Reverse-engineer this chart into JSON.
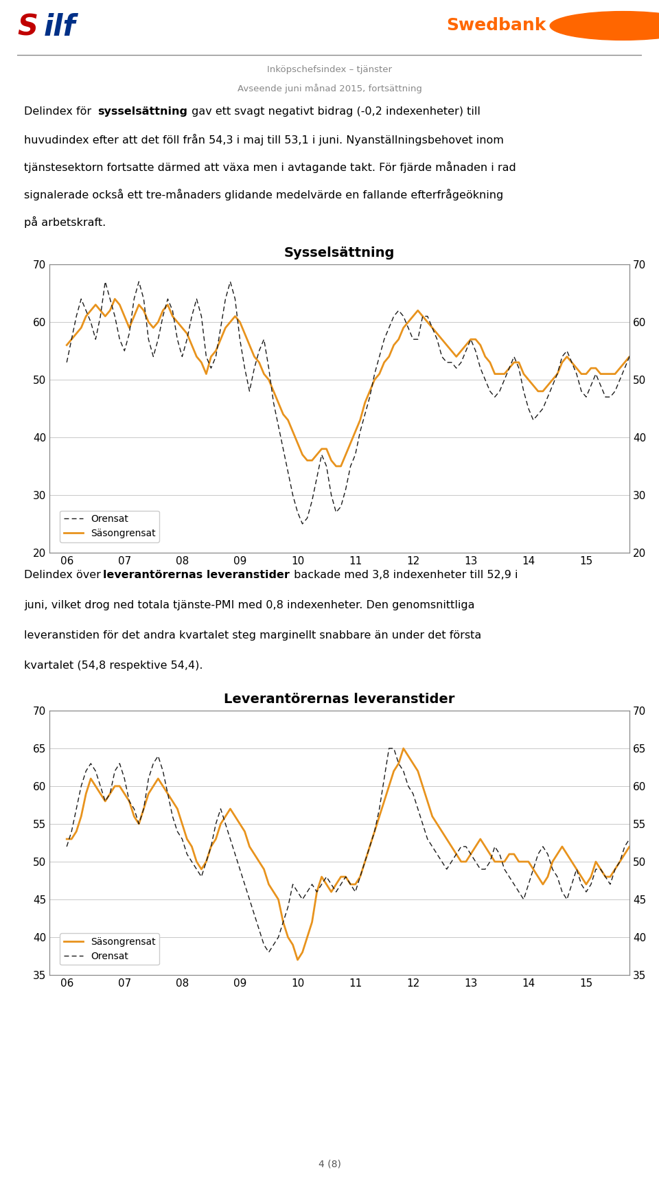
{
  "title1": "Sysselsättning",
  "title2": "Leverantörernas leveranstider",
  "header_line1": "Inköpschefsindex – tjänster",
  "header_line2": "Avseende juni månad 2015, fortsättning",
  "page_label": "4 (8)",
  "orange_color": "#E8931D",
  "dashed_color": "#1a1a1a",
  "grid_color": "#C8C8C8",
  "background_color": "#FFFFFF",
  "chart1_ylim": [
    20,
    70
  ],
  "chart1_yticks": [
    20,
    30,
    40,
    50,
    60,
    70
  ],
  "chart2_ylim": [
    35,
    70
  ],
  "chart2_yticks": [
    35,
    40,
    45,
    50,
    55,
    60,
    65,
    70
  ],
  "xtick_labels": [
    "06",
    "07",
    "08",
    "09",
    "10",
    "11",
    "12",
    "13",
    "14",
    "15"
  ],
  "chart1_seasonal": [
    56,
    57,
    58,
    59,
    61,
    62,
    63,
    62,
    61,
    62,
    64,
    63,
    61,
    59,
    61,
    63,
    62,
    60,
    59,
    60,
    62,
    63,
    61,
    60,
    59,
    58,
    56,
    54,
    53,
    51,
    54,
    55,
    57,
    59,
    60,
    61,
    60,
    58,
    56,
    54,
    53,
    51,
    50,
    48,
    46,
    44,
    43,
    41,
    39,
    37,
    36,
    36,
    37,
    38,
    38,
    36,
    35,
    35,
    37,
    39,
    41,
    43,
    46,
    48,
    50,
    51,
    53,
    54,
    56,
    57,
    59,
    60,
    61,
    62,
    61,
    60,
    59,
    58,
    57,
    56,
    55,
    54,
    55,
    56,
    57,
    57,
    56,
    54,
    53,
    51,
    51,
    51,
    52,
    53,
    53,
    51,
    50,
    49,
    48,
    48,
    49,
    50,
    51,
    53,
    54,
    53,
    52,
    51,
    51,
    52,
    52,
    51,
    51,
    51,
    51,
    52,
    53,
    54,
    54,
    53,
    52,
    51,
    51,
    52,
    52,
    51,
    51,
    50,
    51,
    52,
    53,
    54,
    55,
    56,
    56,
    55,
    54,
    53,
    52,
    51,
    53,
    54,
    55,
    56,
    57,
    58,
    59,
    59,
    58,
    57,
    56,
    55,
    54,
    53,
    52,
    51,
    52,
    53,
    54,
    55,
    55,
    54,
    53,
    52,
    53,
    54,
    55,
    54
  ],
  "chart1_unadjusted": [
    53,
    57,
    61,
    64,
    62,
    60,
    57,
    61,
    67,
    64,
    61,
    57,
    55,
    58,
    64,
    67,
    64,
    57,
    54,
    57,
    61,
    64,
    62,
    57,
    54,
    57,
    61,
    64,
    61,
    54,
    52,
    54,
    59,
    64,
    67,
    64,
    57,
    52,
    48,
    52,
    55,
    57,
    52,
    46,
    42,
    38,
    34,
    30,
    27,
    25,
    26,
    29,
    33,
    37,
    35,
    30,
    27,
    28,
    31,
    35,
    37,
    41,
    44,
    47,
    51,
    54,
    57,
    59,
    61,
    62,
    61,
    59,
    57,
    57,
    61,
    61,
    59,
    57,
    54,
    53,
    53,
    52,
    53,
    55,
    57,
    55,
    52,
    50,
    48,
    47,
    48,
    50,
    52,
    54,
    52,
    48,
    45,
    43,
    44,
    45,
    47,
    49,
    51,
    54,
    55,
    53,
    51,
    48,
    47,
    49,
    51,
    49,
    47,
    47,
    48,
    50,
    52,
    54,
    55,
    53,
    50,
    48,
    47,
    49,
    51,
    49,
    47,
    45,
    47,
    50,
    52,
    54,
    55,
    56,
    54,
    52,
    50,
    49,
    48,
    47,
    50,
    52,
    54,
    55,
    57,
    58,
    58,
    57,
    55,
    54,
    52,
    51,
    50,
    49,
    48,
    50,
    52,
    54,
    55,
    53,
    51,
    49,
    48,
    50,
    52,
    53,
    50,
    52
  ],
  "chart2_seasonal": [
    53,
    53,
    54,
    56,
    59,
    61,
    60,
    59,
    58,
    59,
    60,
    60,
    59,
    58,
    56,
    55,
    57,
    59,
    60,
    61,
    60,
    59,
    58,
    57,
    55,
    53,
    52,
    50,
    49,
    50,
    52,
    53,
    55,
    56,
    57,
    56,
    55,
    54,
    52,
    51,
    50,
    49,
    47,
    46,
    45,
    42,
    40,
    39,
    37,
    38,
    40,
    42,
    46,
    48,
    47,
    46,
    47,
    48,
    48,
    47,
    47,
    48,
    50,
    52,
    54,
    56,
    58,
    60,
    62,
    63,
    65,
    64,
    63,
    62,
    60,
    58,
    56,
    55,
    54,
    53,
    52,
    51,
    50,
    50,
    51,
    52,
    53,
    52,
    51,
    50,
    50,
    50,
    51,
    51,
    50,
    50,
    50,
    49,
    48,
    47,
    48,
    50,
    51,
    52,
    51,
    50,
    49,
    48,
    47,
    48,
    50,
    49,
    48,
    48,
    49,
    50,
    51,
    52,
    52,
    51,
    50,
    50,
    51,
    51,
    50,
    50,
    50,
    49,
    50,
    51,
    52,
    53,
    55,
    56,
    55,
    54,
    53,
    52,
    51,
    50,
    51,
    52,
    54,
    55,
    56,
    57,
    57,
    55,
    54,
    53,
    52,
    51,
    52,
    53,
    54,
    53,
    52,
    51,
    52,
    54,
    53,
    52,
    53,
    54
  ],
  "chart2_unadjusted": [
    52,
    54,
    57,
    60,
    62,
    63,
    62,
    60,
    58,
    59,
    62,
    63,
    61,
    58,
    57,
    55,
    57,
    61,
    63,
    64,
    62,
    59,
    56,
    54,
    53,
    51,
    50,
    49,
    48,
    50,
    52,
    55,
    57,
    55,
    53,
    51,
    49,
    47,
    45,
    43,
    41,
    39,
    38,
    39,
    40,
    42,
    44,
    47,
    46,
    45,
    46,
    47,
    46,
    47,
    48,
    47,
    46,
    47,
    48,
    47,
    46,
    48,
    50,
    52,
    54,
    57,
    61,
    65,
    65,
    63,
    62,
    60,
    59,
    57,
    55,
    53,
    52,
    51,
    50,
    49,
    50,
    51,
    52,
    52,
    51,
    50,
    49,
    49,
    50,
    52,
    51,
    49,
    48,
    47,
    46,
    45,
    47,
    49,
    51,
    52,
    51,
    49,
    48,
    46,
    45,
    47,
    49,
    47,
    46,
    47,
    49,
    49,
    48,
    47,
    49,
    50,
    52,
    53,
    52,
    49,
    48,
    47,
    46,
    48,
    50,
    51,
    49,
    47,
    46,
    48,
    51,
    53,
    54,
    55,
    54,
    52,
    50,
    48,
    47,
    46,
    48,
    51,
    53,
    55,
    56,
    57,
    55,
    53,
    51,
    50,
    48,
    47,
    49,
    51,
    53,
    54,
    53,
    51,
    50,
    51,
    53,
    52,
    51,
    53
  ]
}
